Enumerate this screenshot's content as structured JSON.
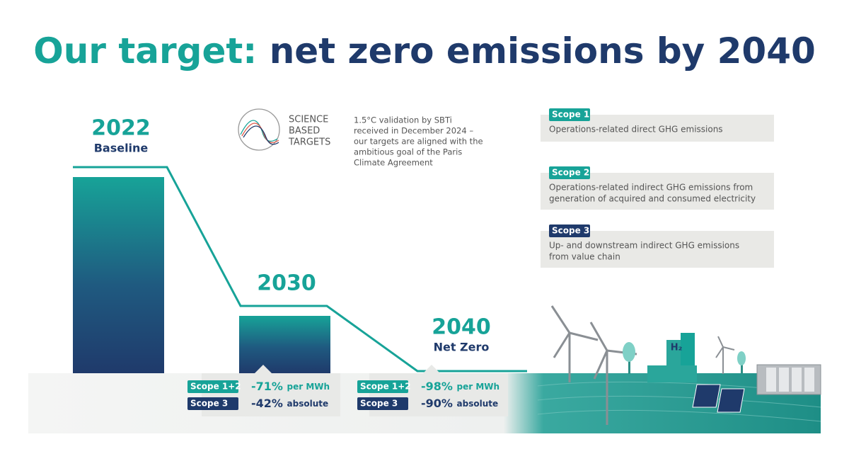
{
  "title": {
    "highlight": "Our target:",
    "rest": "net zero emissions by 2040"
  },
  "milestones": [
    {
      "year": "2022",
      "label": "Baseline"
    },
    {
      "year": "2030"
    },
    {
      "year": "2040",
      "label": "Net Zero"
    }
  ],
  "sbti": {
    "logo": [
      "SCIENCE",
      "BASED",
      "TARGETS"
    ],
    "text": [
      "1.5°C validation by SBTi",
      "received in December 2024 –",
      "our targets are aligned with the",
      "ambitious goal of the Paris",
      "Climate Agreement"
    ]
  },
  "scopes": [
    {
      "tag": "Scope 1",
      "text": [
        "Operations-related direct GHG emissions"
      ]
    },
    {
      "tag": "Scope 2",
      "text": [
        "Operations-related indirect GHG emissions from",
        "generation of acquired and consumed electricity"
      ]
    },
    {
      "tag": "Scope 3",
      "text": [
        "Up- and downstream indirect GHG emissions",
        "from value chain"
      ]
    }
  ],
  "reductions": [
    {
      "rows": [
        {
          "tag": "Scope 1+2",
          "value": "-71%",
          "unit": "per MWh"
        },
        {
          "tag": "Scope 3",
          "value": "-42%",
          "unit": "absolute"
        }
      ]
    },
    {
      "rows": [
        {
          "tag": "Scope 1+2",
          "value": "-98%",
          "unit": "per MWh"
        },
        {
          "tag": "Scope 3",
          "value": "-90%",
          "unit": "absolute"
        }
      ]
    }
  ],
  "icon": {
    "h2": "H₂"
  }
}
